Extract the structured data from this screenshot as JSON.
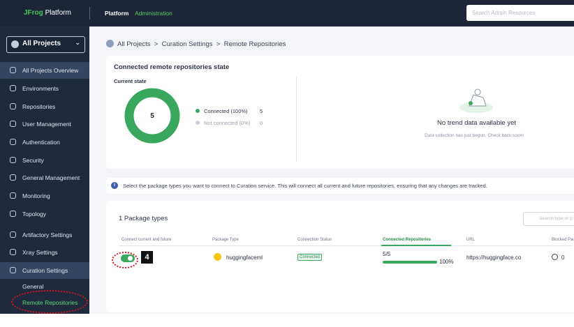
{
  "header": {
    "brand": "JFrog",
    "brand_suffix": "Platform",
    "nav": [
      "Platform",
      "Administration"
    ],
    "search_placeholder": "Search Admin Resources"
  },
  "sidebar": {
    "project_selector": "All Projects",
    "items": [
      "All Projects Overview",
      "Environments",
      "Repositories",
      "User Management",
      "Authentication",
      "Security",
      "General Management",
      "Monitoring",
      "Topology",
      "Artifactory Settings",
      "Xray Settings",
      "Curation Settings"
    ],
    "subitems": [
      "General",
      "Remote Repositories"
    ]
  },
  "breadcrumb": [
    "All Projects",
    "Curation Settings",
    "Remote Repositories"
  ],
  "state_card": {
    "title": "Connected remote repositories state",
    "subtitle": "Current state",
    "total": 5,
    "legend": [
      {
        "label": "Connected (100%)",
        "value": 5,
        "color": "#3aa85c"
      },
      {
        "label": "Not connected (0%)",
        "value": 0,
        "color": "#c9cfe0"
      }
    ],
    "trend_title": "No trend data available yet",
    "trend_text": "Data collection has just begun. Check back soon!"
  },
  "info_text": "Select the package types you want to connect to Curation service. This will connect all current and future repositories, ensuring that any changes are tracked.",
  "table": {
    "title": "1 Package types",
    "search_placeholder": "Search type or p",
    "columns": [
      "Connect current and future",
      "Package Type",
      "Connection Status",
      "Connected Repositories",
      "URL",
      "Blocked Pack"
    ],
    "rows": [
      {
        "package_type": "huggingfaceml",
        "status": "Connected",
        "repos": "5/5",
        "percent": 100,
        "percent_label": "100%",
        "url": "https://huggingface.co",
        "blocked": 0
      }
    ]
  },
  "annotation": "4"
}
